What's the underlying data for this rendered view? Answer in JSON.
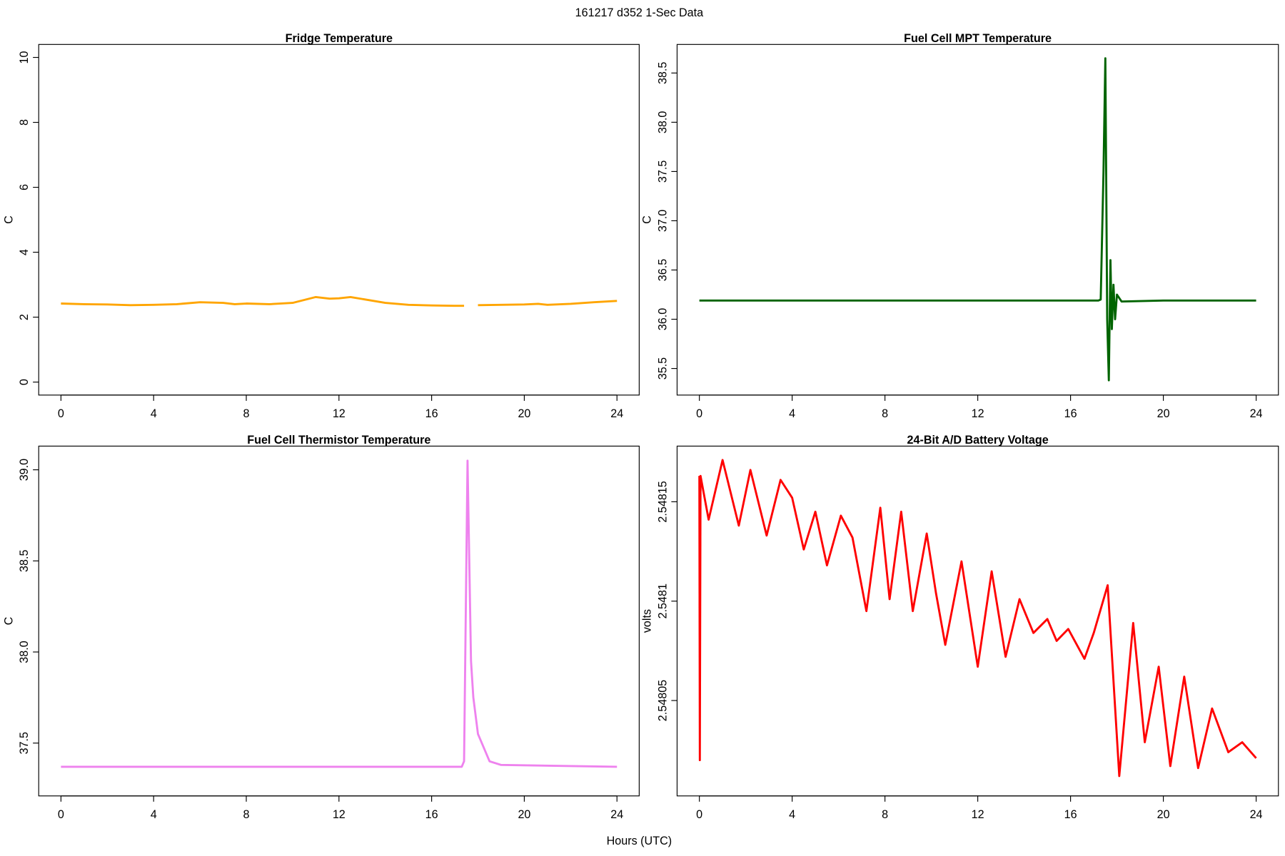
{
  "title": "161217   d352   1-Sec Data",
  "xlabel": "Hours (UTC)",
  "chart_data": [
    {
      "type": "line",
      "title": "Fridge Temperature",
      "ylabel": "C",
      "color": "#FFA500",
      "x": [
        0,
        1,
        2,
        3,
        4,
        5,
        6,
        7,
        7.5,
        8,
        9,
        10,
        11,
        11.6,
        12,
        12.5,
        13,
        14,
        15,
        16,
        17,
        17.4,
        17.5,
        18,
        19,
        20,
        20.6,
        21,
        22,
        23,
        24
      ],
      "values": [
        2.42,
        2.4,
        2.39,
        2.37,
        2.38,
        2.4,
        2.46,
        2.44,
        2.4,
        2.42,
        2.4,
        2.44,
        2.62,
        2.57,
        2.58,
        2.62,
        2.56,
        2.44,
        2.38,
        2.36,
        2.35,
        2.35,
        null,
        2.37,
        2.38,
        2.39,
        2.41,
        2.38,
        2.41,
        2.46,
        2.5
      ],
      "xlim": [
        -0.96,
        24.96
      ],
      "xticks": [
        0,
        4,
        8,
        12,
        16,
        20,
        24
      ],
      "ylim": [
        -0.4,
        10.4
      ],
      "yticks": [
        0,
        2,
        4,
        6,
        8,
        10
      ]
    },
    {
      "type": "line",
      "title": "Fuel Cell MPT Temperature",
      "ylabel": "C",
      "color": "#006400",
      "x": [
        0,
        4,
        8,
        12,
        16,
        17.2,
        17.3,
        17.42,
        17.5,
        17.58,
        17.65,
        17.72,
        17.78,
        17.85,
        17.92,
        18.0,
        18.2,
        20,
        24
      ],
      "values": [
        36.19,
        36.19,
        36.19,
        36.19,
        36.19,
        36.19,
        36.2,
        37.5,
        38.65,
        36.0,
        35.38,
        36.6,
        35.9,
        36.35,
        36.0,
        36.25,
        36.18,
        36.19,
        36.19
      ],
      "xlim": [
        -0.96,
        24.96
      ],
      "xticks": [
        0,
        4,
        8,
        12,
        16,
        20,
        24
      ],
      "ylim": [
        35.23,
        38.79
      ],
      "yticks": [
        35.5,
        {
          "value": 36,
          "label": "36.0"
        },
        36.5,
        {
          "value": 37,
          "label": "37.0"
        },
        37.5,
        {
          "value": 38,
          "label": "38.0"
        },
        38.5
      ]
    },
    {
      "type": "line",
      "title": "Fuel Cell Thermistor Temperature",
      "ylabel": "C",
      "color": "#EE82EE",
      "x": [
        0,
        4,
        8,
        12,
        16,
        17.3,
        17.4,
        17.55,
        17.7,
        17.8,
        18.0,
        18.5,
        19,
        24
      ],
      "values": [
        37.37,
        37.37,
        37.37,
        37.37,
        37.37,
        37.37,
        37.4,
        39.05,
        37.95,
        37.75,
        37.55,
        37.4,
        37.38,
        37.37
      ],
      "xlim": [
        -0.96,
        24.96
      ],
      "xticks": [
        0,
        4,
        8,
        12,
        16,
        20,
        24
      ],
      "ylim": [
        37.21,
        39.13
      ],
      "yticks": [
        37.5,
        {
          "value": 38,
          "label": "38.0"
        },
        38.5,
        {
          "value": 39,
          "label": "39.0"
        }
      ]
    },
    {
      "type": "line",
      "title": "24-Bit A/D Battery Voltage",
      "ylabel": "volts",
      "color": "#FF0000",
      "x": [
        0,
        0.02,
        0.05,
        0.4,
        1.0,
        1.7,
        2.2,
        2.9,
        3.5,
        4.0,
        4.5,
        5.0,
        5.5,
        6.1,
        6.6,
        7.2,
        7.8,
        8.2,
        8.7,
        9.2,
        9.8,
        10.2,
        10.6,
        11.3,
        12.0,
        12.6,
        13.2,
        13.8,
        14.4,
        15.0,
        15.4,
        15.9,
        16.6,
        17.0,
        17.6,
        18.1,
        18.7,
        19.2,
        19.8,
        20.3,
        20.9,
        21.5,
        22.1,
        22.8,
        23.4,
        24.0
      ],
      "values": [
        2.548163,
        2.54802,
        2.548163,
        2.548141,
        2.548171,
        2.548138,
        2.548166,
        2.548133,
        2.548161,
        2.548152,
        2.548126,
        2.548145,
        2.548118,
        2.548143,
        2.548132,
        2.548095,
        2.548147,
        2.548101,
        2.548145,
        2.548095,
        2.548134,
        2.548104,
        2.548078,
        2.54812,
        2.548067,
        2.548115,
        2.548072,
        2.548101,
        2.548084,
        2.548091,
        2.54808,
        2.548086,
        2.548071,
        2.548084,
        2.548108,
        2.548012,
        2.548089,
        2.548029,
        2.548067,
        2.548017,
        2.548062,
        2.548016,
        2.548046,
        2.548024,
        2.548029,
        2.548021
      ],
      "xlim": [
        -0.96,
        24.96
      ],
      "xticks": [
        0,
        4,
        8,
        12,
        16,
        20,
        24
      ],
      "ylim": [
        2.548002,
        2.548178
      ],
      "yticks": [
        2.54805,
        2.5481,
        2.54815
      ]
    }
  ]
}
